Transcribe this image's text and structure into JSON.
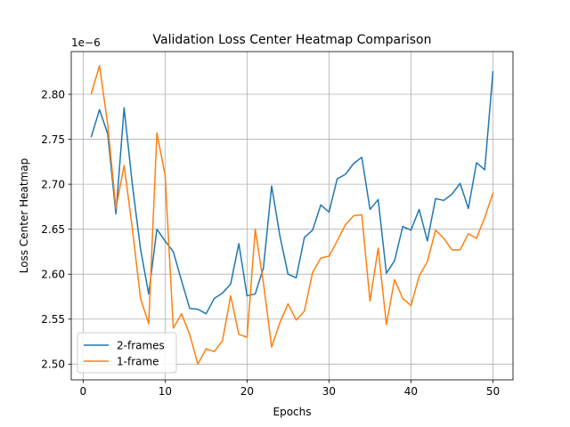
{
  "chart_data": {
    "type": "line",
    "title": "Validation Loss Center Heatmap Comparison",
    "xlabel": "Epochs",
    "ylabel": "Loss Center Heatmap",
    "y_offset_label": "1e−6",
    "xlim": [
      -1.45,
      52.45
    ],
    "ylim": [
      2.4825,
      2.8475
    ],
    "x_ticks": [
      0,
      10,
      20,
      30,
      40,
      50
    ],
    "y_ticks": [
      2.5,
      2.55,
      2.6,
      2.65,
      2.7,
      2.75,
      2.8
    ],
    "y_tick_labels": [
      "2.50",
      "2.55",
      "2.60",
      "2.65",
      "2.70",
      "2.75",
      "2.80"
    ],
    "grid": true,
    "legend_position": "lower-left",
    "x": [
      1,
      2,
      3,
      4,
      5,
      6,
      7,
      8,
      9,
      10,
      11,
      12,
      13,
      14,
      15,
      16,
      17,
      18,
      19,
      20,
      21,
      22,
      23,
      24,
      25,
      26,
      27,
      28,
      29,
      30,
      31,
      32,
      33,
      34,
      35,
      36,
      37,
      38,
      39,
      40,
      41,
      42,
      43,
      44,
      45,
      46,
      47,
      48,
      49,
      50
    ],
    "series": [
      {
        "name": "2-frames",
        "color": "#1f77b4",
        "values": [
          2.753,
          2.783,
          2.756,
          2.667,
          2.785,
          2.7,
          2.628,
          2.578,
          2.65,
          2.637,
          2.625,
          2.593,
          2.562,
          2.561,
          2.556,
          2.573,
          2.579,
          2.589,
          2.634,
          2.576,
          2.578,
          2.607,
          2.698,
          2.643,
          2.6,
          2.596,
          2.641,
          2.649,
          2.677,
          2.669,
          2.706,
          2.711,
          2.723,
          2.73,
          2.672,
          2.683,
          2.601,
          2.615,
          2.653,
          2.649,
          2.672,
          2.637,
          2.684,
          2.682,
          2.689,
          2.701,
          2.673,
          2.724,
          2.716,
          2.825
        ]
      },
      {
        "name": "1-frame",
        "color": "#ff7f0e",
        "values": [
          2.801,
          2.832,
          2.766,
          2.673,
          2.721,
          2.651,
          2.573,
          2.545,
          2.757,
          2.71,
          2.54,
          2.556,
          2.533,
          2.5,
          2.517,
          2.514,
          2.526,
          2.576,
          2.533,
          2.53,
          2.65,
          2.59,
          2.519,
          2.546,
          2.567,
          2.549,
          2.559,
          2.602,
          2.618,
          2.62,
          2.637,
          2.655,
          2.665,
          2.666,
          2.57,
          2.629,
          2.544,
          2.594,
          2.573,
          2.565,
          2.598,
          2.614,
          2.649,
          2.64,
          2.627,
          2.627,
          2.645,
          2.64,
          2.663,
          2.69
        ]
      }
    ]
  }
}
